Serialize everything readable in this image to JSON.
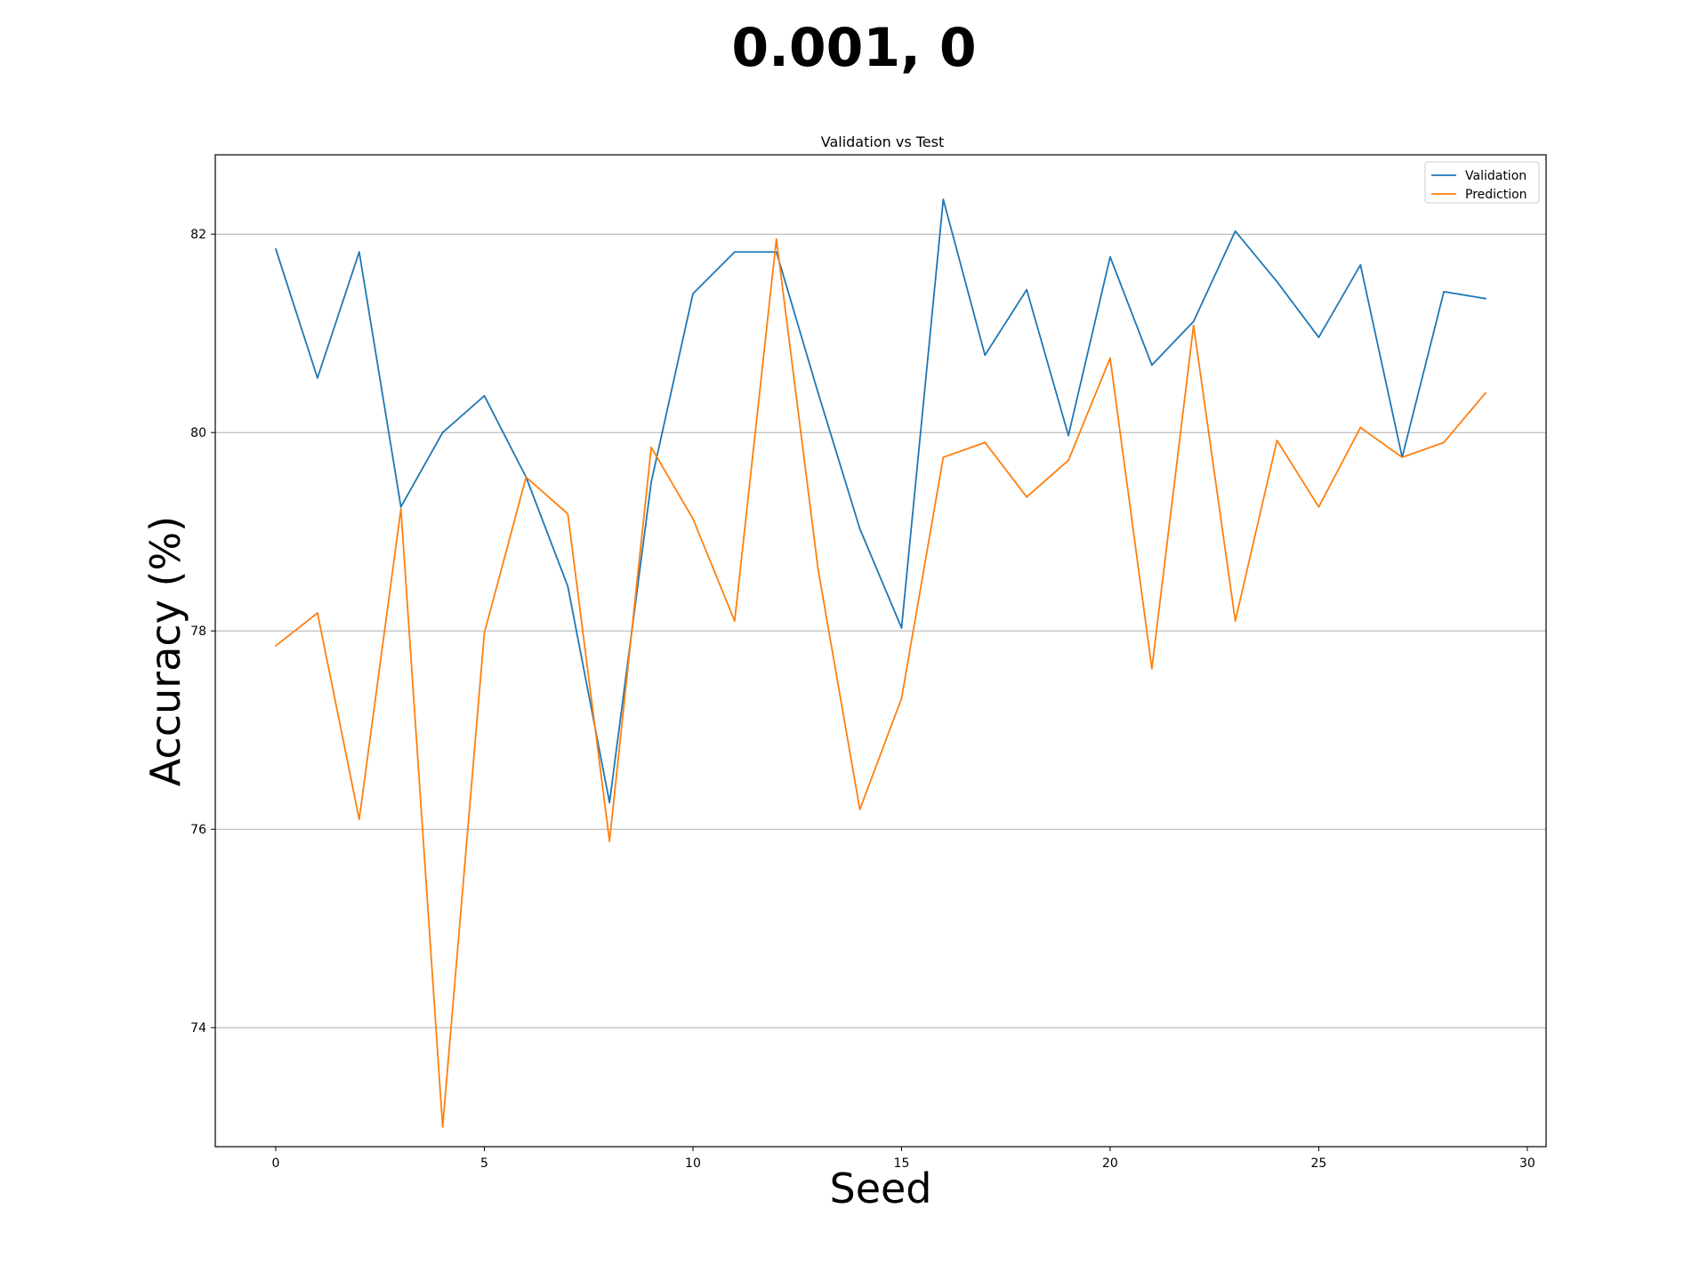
{
  "figure": {
    "suptitle": "0.001, 0"
  },
  "chart_data": {
    "type": "line",
    "title": "Validation vs Test",
    "xlabel": "Seed",
    "ylabel": "Accuracy (%)",
    "xlim": [
      -1.45,
      30.45
    ],
    "ylim": [
      72.8,
      82.8
    ],
    "xticks": [
      0,
      5,
      10,
      15,
      20,
      25,
      30
    ],
    "yticks": [
      74,
      76,
      78,
      80,
      82
    ],
    "grid": "y",
    "legend": "top-right",
    "x": [
      0,
      1,
      2,
      3,
      4,
      5,
      6,
      7,
      8,
      9,
      10,
      11,
      12,
      13,
      14,
      15,
      16,
      17,
      18,
      19,
      20,
      21,
      22,
      23,
      24,
      25,
      26,
      27,
      28,
      29
    ],
    "series": [
      {
        "name": "Validation",
        "color": "#1f77b4",
        "values": [
          81.85,
          80.55,
          81.82,
          79.25,
          80.0,
          80.37,
          79.55,
          78.45,
          76.27,
          79.5,
          81.4,
          81.82,
          81.82,
          80.4,
          79.03,
          78.03,
          82.35,
          80.78,
          81.44,
          79.97,
          81.77,
          80.68,
          81.12,
          82.03,
          81.52,
          80.96,
          81.69,
          79.75,
          81.42,
          81.35
        ]
      },
      {
        "name": "Prediction",
        "color": "#ff7f0e",
        "values": [
          77.85,
          78.18,
          76.1,
          79.23,
          73.0,
          77.98,
          79.55,
          79.18,
          75.88,
          79.85,
          79.13,
          78.1,
          81.95,
          78.62,
          76.2,
          77.32,
          79.75,
          79.9,
          79.35,
          79.72,
          80.75,
          77.62,
          81.08,
          78.1,
          79.92,
          79.25,
          80.05,
          79.75,
          79.9,
          80.4
        ]
      }
    ]
  }
}
